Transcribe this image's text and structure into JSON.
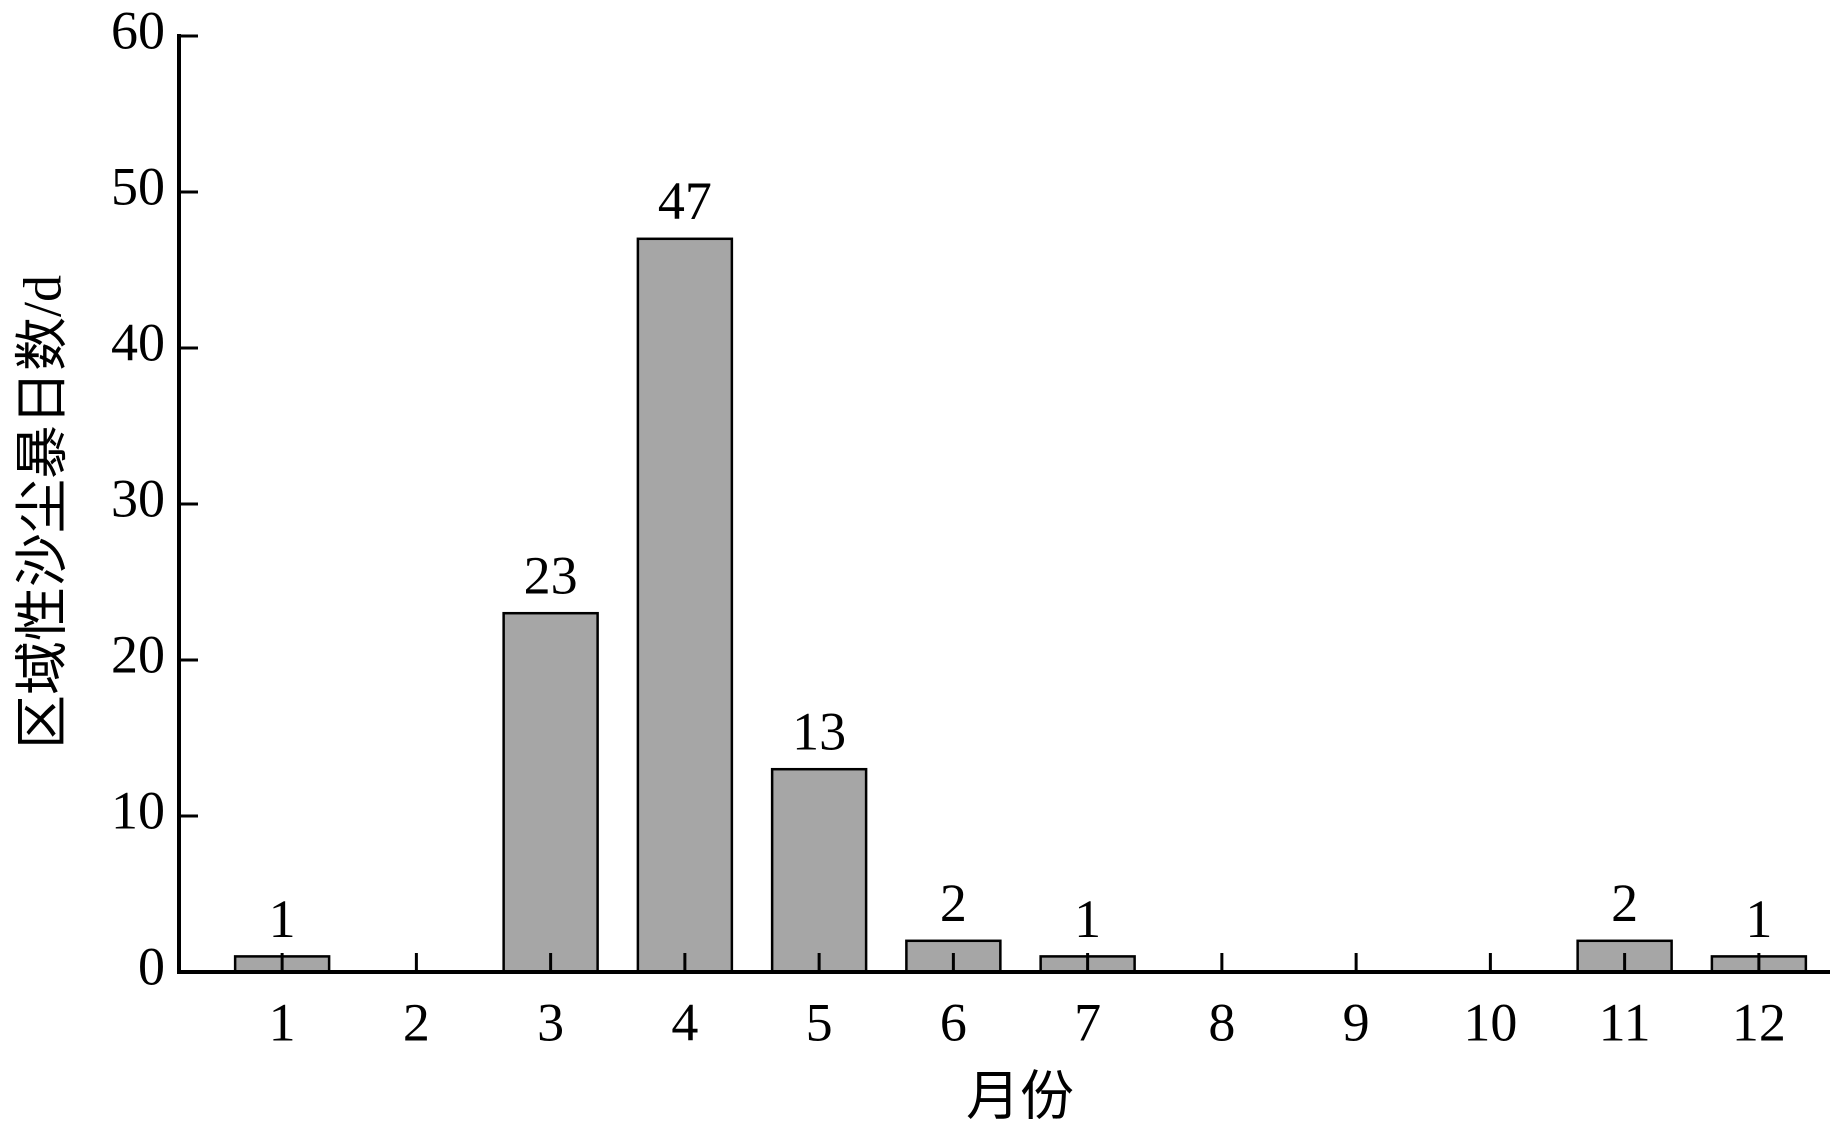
{
  "chart_data": {
    "type": "bar",
    "x_label": "月份",
    "y_label": "区域性沙尘暴日数/d",
    "categories": [
      "1",
      "2",
      "3",
      "4",
      "5",
      "6",
      "7",
      "8",
      "9",
      "10",
      "11",
      "12"
    ],
    "values": [
      1,
      0,
      23,
      47,
      13,
      2,
      1,
      0,
      0,
      0,
      2,
      1
    ],
    "value_labels": [
      "1",
      null,
      "23",
      "47",
      "13",
      "2",
      "1",
      null,
      null,
      null,
      "2",
      "1"
    ],
    "color": "#a6a6a6",
    "ylim": [
      0,
      60
    ],
    "yticks": [
      0,
      10,
      20,
      30,
      40,
      50,
      60
    ],
    "grid": false
  }
}
